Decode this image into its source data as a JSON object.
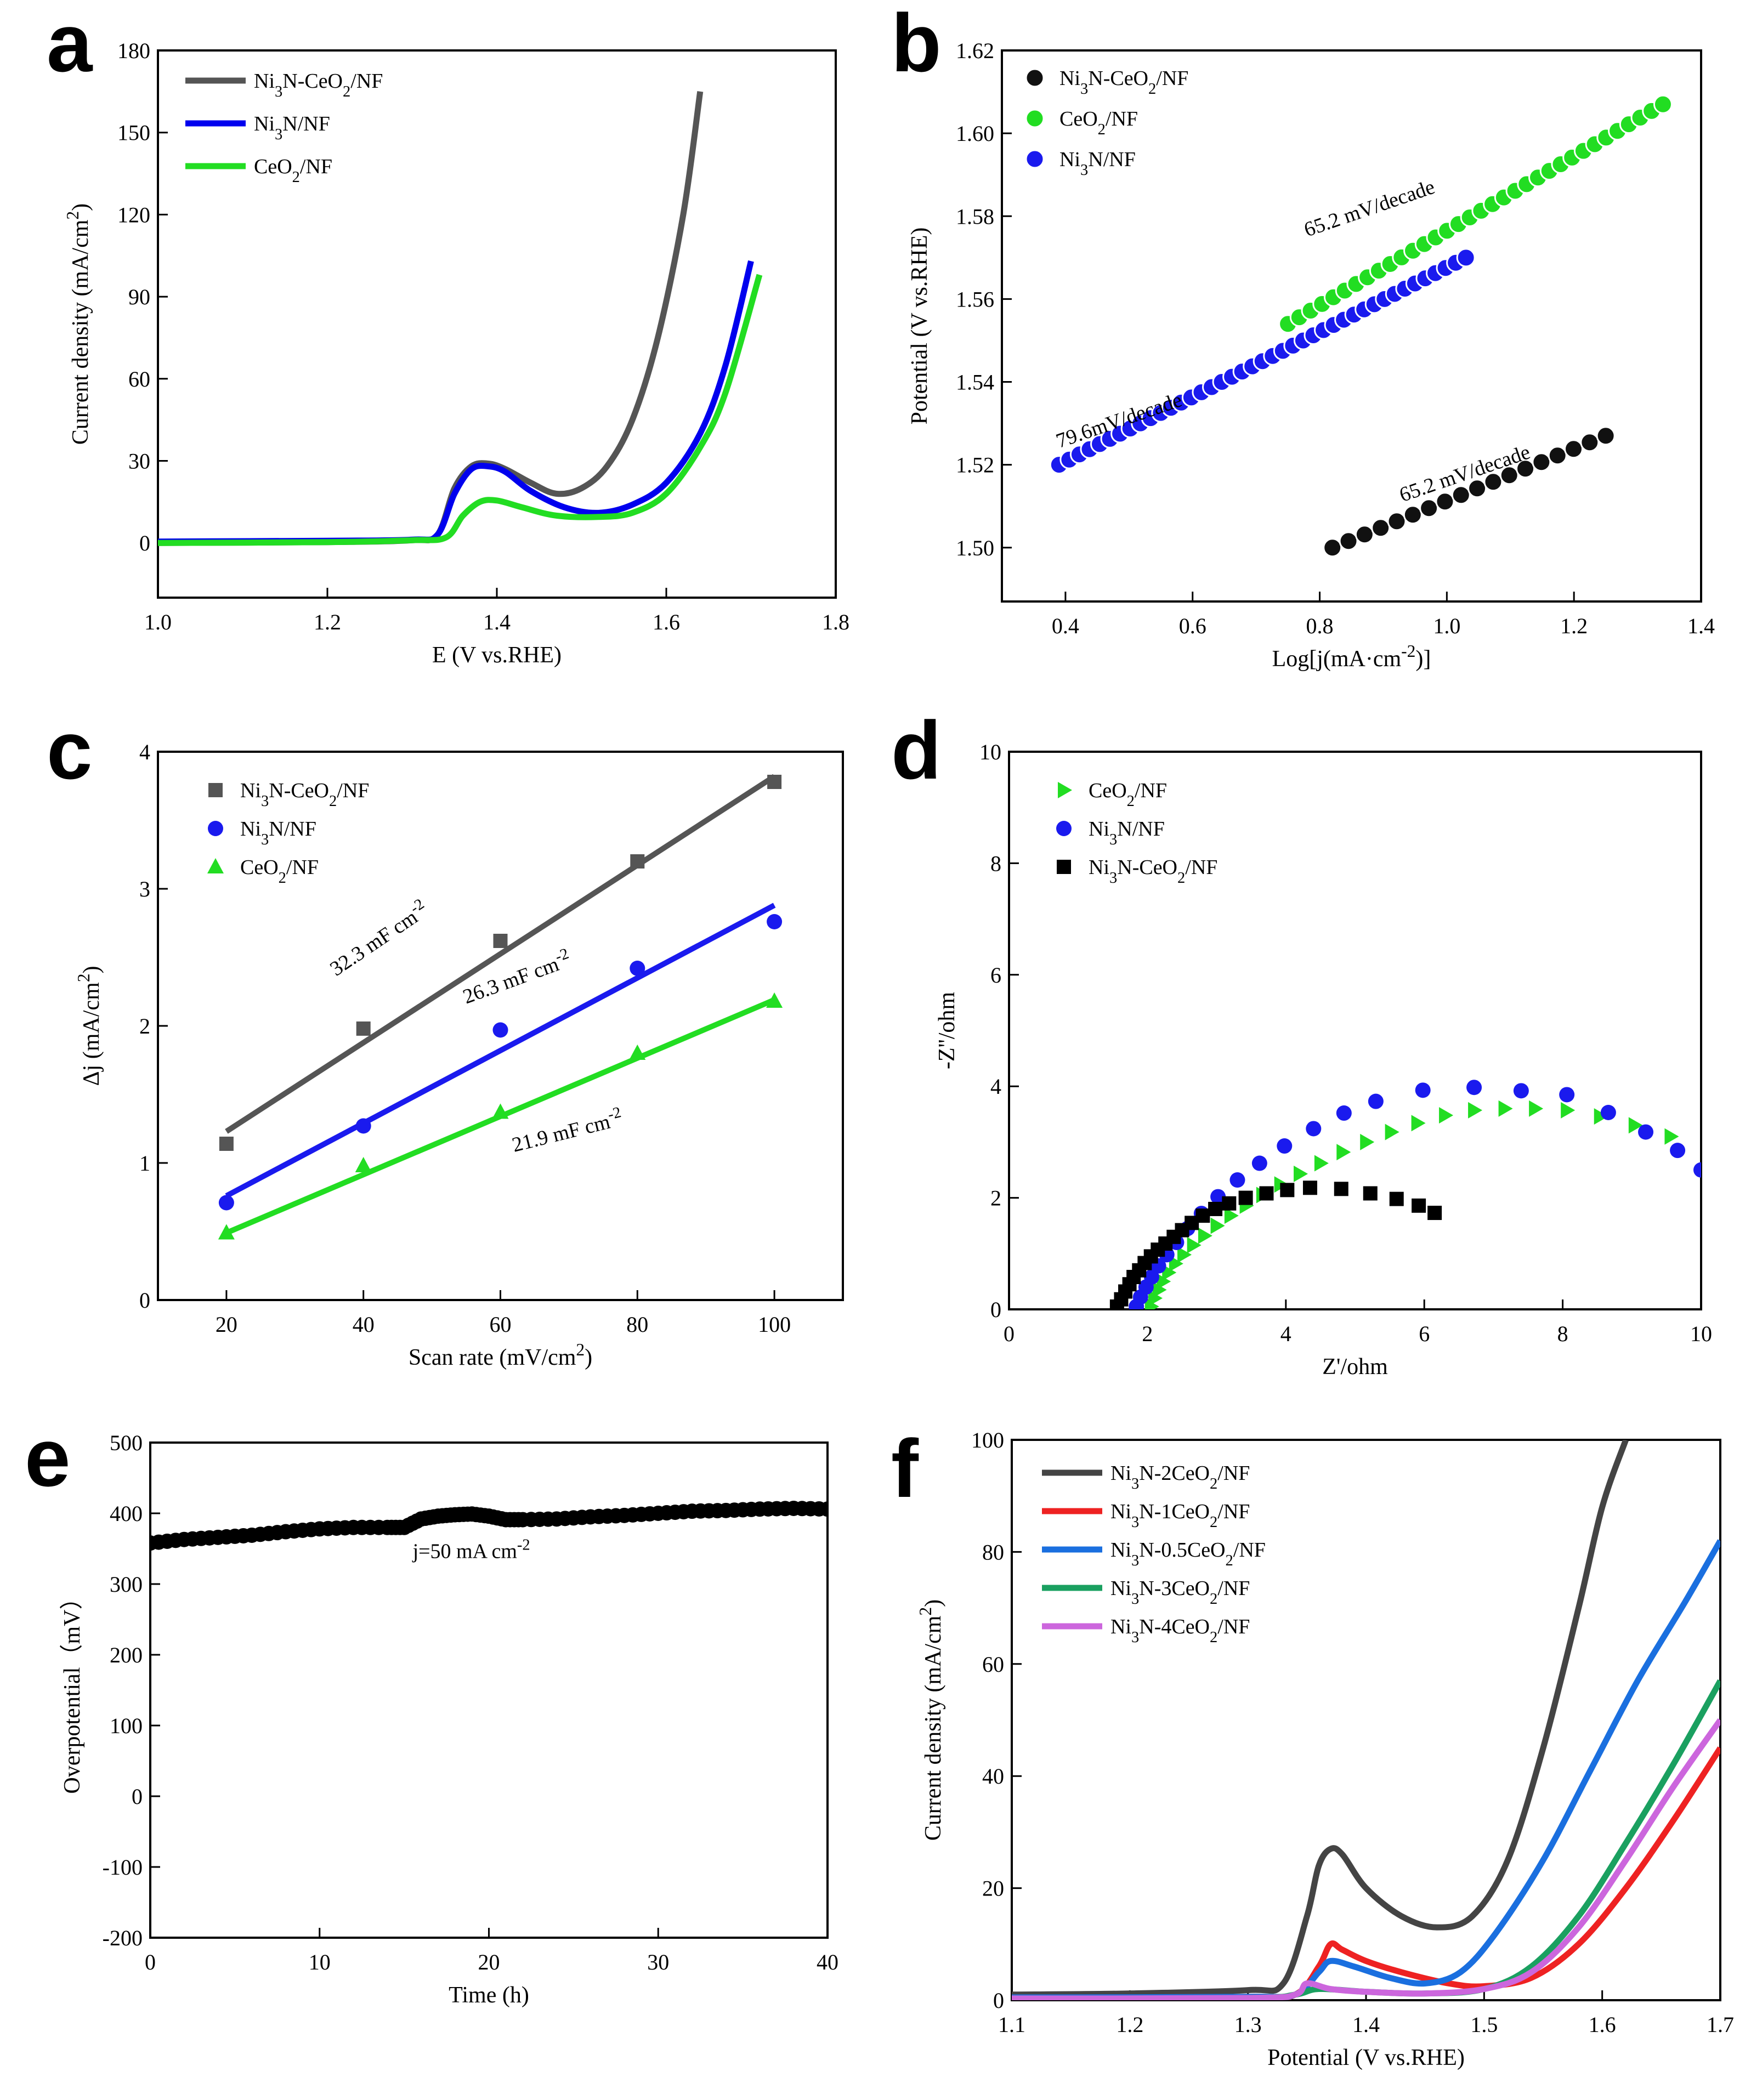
{
  "chart_data": [
    {
      "panel_label": "a",
      "type": "line",
      "xlabel": "E (V vs.RHE)",
      "ylabel": "Current density (mA/cm<sup>2</sup>)",
      "xlim": [
        1.0,
        1.8
      ],
      "ylim": [
        -20,
        180
      ],
      "xticks": [
        1.0,
        1.2,
        1.4,
        1.6,
        1.8
      ],
      "xtick_labels": [
        "1.0",
        "1.2",
        "1.4",
        "1.6",
        "1.8"
      ],
      "yticks": [
        0,
        30,
        60,
        90,
        120,
        150,
        180
      ],
      "ytick_labels": [
        "0",
        "30",
        "60",
        "90",
        "120",
        "150",
        "180"
      ],
      "legend_position": "top-left",
      "series": [
        {
          "name": "Ni<sub>3</sub>N-CeO<sub>2</sub>/NF",
          "color": "#555555",
          "marker": "line",
          "x": [
            1.0,
            1.2,
            1.3,
            1.33,
            1.35,
            1.37,
            1.39,
            1.41,
            1.44,
            1.47,
            1.5,
            1.53,
            1.56,
            1.59,
            1.62,
            1.64
          ],
          "y": [
            0,
            0.3,
            1,
            3,
            20,
            28,
            29,
            27,
            22,
            18,
            20,
            28,
            45,
            75,
            120,
            165
          ]
        },
        {
          "name": "Ni<sub>3</sub>N/NF",
          "color": "#0000ee",
          "marker": "line",
          "x": [
            1.0,
            1.2,
            1.3,
            1.33,
            1.35,
            1.37,
            1.39,
            1.41,
            1.44,
            1.48,
            1.52,
            1.56,
            1.6,
            1.64,
            1.67,
            1.7
          ],
          "y": [
            0.5,
            0.8,
            1.2,
            3,
            18,
            27,
            28,
            26,
            19,
            13,
            11,
            14,
            22,
            40,
            65,
            103
          ]
        },
        {
          "name": "CeO<sub>2</sub>/NF",
          "color": "#22dd22",
          "marker": "line",
          "x": [
            1.0,
            1.2,
            1.3,
            1.34,
            1.36,
            1.38,
            1.4,
            1.43,
            1.47,
            1.52,
            1.56,
            1.6,
            1.64,
            1.67,
            1.71
          ],
          "y": [
            0,
            0.3,
            1,
            2,
            10,
            15,
            15.5,
            13,
            10,
            9.5,
            11,
            18,
            35,
            55,
            98
          ]
        }
      ]
    },
    {
      "panel_label": "b",
      "type": "scatter",
      "xlabel": "Log[j(mA·cm<sup>-2</sup>)]",
      "ylabel": "Potential (V vs.RHE)",
      "xlim": [
        0.3,
        1.4
      ],
      "ylim": [
        1.487,
        1.62
      ],
      "xticks": [
        0.4,
        0.6,
        0.8,
        1.0,
        1.2,
        1.4
      ],
      "xtick_labels": [
        "0.4",
        "0.6",
        "0.8",
        "1.0",
        "1.2",
        "1.4"
      ],
      "yticks": [
        1.5,
        1.52,
        1.54,
        1.56,
        1.58,
        1.6,
        1.62
      ],
      "ytick_labels": [
        "1.50",
        "1.52",
        "1.54",
        "1.56",
        "1.58",
        "1.60",
        "1.62"
      ],
      "legend_position": "top-left",
      "series": [
        {
          "name": "Ni<sub>3</sub>N-CeO<sub>2</sub>/NF",
          "color": "#111111",
          "marker": "ball",
          "x_start": 0.82,
          "x_end": 1.25,
          "y_start": 1.5,
          "y_end": 1.527,
          "n": 18
        },
        {
          "name": "CeO<sub>2</sub>/NF",
          "color": "#22dd22",
          "marker": "ball",
          "x_start": 0.75,
          "x_end": 1.34,
          "y_start": 1.554,
          "y_end": 1.607,
          "n": 34
        },
        {
          "name": "Ni<sub>3</sub>N/NF",
          "color": "#1a1aee",
          "marker": "ball",
          "x_start": 0.39,
          "x_end": 1.03,
          "y_start": 1.52,
          "y_end": 1.57,
          "n": 41
        }
      ],
      "annotations": [
        {
          "text": "65.2 mV/decade",
          "x": 0.78,
          "y": 1.575,
          "angle": -19
        },
        {
          "text": "79.6mV/decade",
          "x": 0.39,
          "y": 1.524,
          "angle": -19
        },
        {
          "text": "65.2 mV/decade",
          "x": 0.93,
          "y": 1.511,
          "angle": -19
        }
      ]
    },
    {
      "panel_label": "c",
      "type": "scatter",
      "xlabel": "Scan rate (mV/cm<sup>2</sup>)",
      "ylabel": "Δj (mA/cm<sup>2</sup>)",
      "xlim": [
        10,
        110
      ],
      "ylim": [
        0,
        4
      ],
      "xticks": [
        20,
        40,
        60,
        80,
        100
      ],
      "xtick_labels": [
        "20",
        "40",
        "60",
        "80",
        "100"
      ],
      "yticks": [
        0,
        1,
        2,
        3,
        4
      ],
      "ytick_labels": [
        "0",
        "1",
        "2",
        "3",
        "4"
      ],
      "legend_position": "top-left",
      "series": [
        {
          "name": "Ni<sub>3</sub>N-CeO<sub>2</sub>/NF",
          "color": "#555555",
          "marker": "square",
          "x": [
            20,
            40,
            60,
            80,
            100
          ],
          "y": [
            1.14,
            1.98,
            2.62,
            3.2,
            3.78
          ],
          "fit": [
            1.23,
            3.82
          ]
        },
        {
          "name": "Ni<sub>3</sub>N/NF",
          "color": "#1a1aee",
          "marker": "circle",
          "x": [
            20,
            40,
            60,
            80,
            100
          ],
          "y": [
            0.71,
            1.27,
            1.97,
            2.42,
            2.76
          ],
          "fit": [
            0.76,
            2.88
          ]
        },
        {
          "name": "CeO<sub>2</sub>/NF",
          "color": "#22dd22",
          "marker": "triangle",
          "x": [
            20,
            40,
            60,
            80,
            100
          ],
          "y": [
            0.49,
            0.98,
            1.37,
            1.8,
            2.18
          ],
          "fit": [
            0.49,
            2.19
          ]
        }
      ],
      "annotations": [
        {
          "text": "32.3 mF cm<sup>-2</sup>",
          "x": 36,
          "y": 2.36,
          "angle": -34
        },
        {
          "text": "26.3 mF cm<sup>-2</sup>",
          "x": 55,
          "y": 2.16,
          "angle": -20
        },
        {
          "text": "21.9 mF cm<sup>-2</sup>",
          "x": 62,
          "y": 1.08,
          "angle": -14
        }
      ]
    },
    {
      "panel_label": "d",
      "type": "scatter",
      "xlabel": "Z'/ohm",
      "ylabel": "-Z''/ohm",
      "xlim": [
        0,
        10
      ],
      "ylim": [
        0,
        10
      ],
      "xticks": [
        0,
        2,
        4,
        6,
        8,
        10
      ],
      "xtick_labels": [
        "0",
        "2",
        "4",
        "6",
        "8",
        "10"
      ],
      "yticks": [
        0,
        2,
        4,
        6,
        8,
        10
      ],
      "ytick_labels": [
        "0",
        "2",
        "4",
        "6",
        "8",
        "10"
      ],
      "legend_position": "top-left",
      "series": [
        {
          "name": "CeO<sub>2</sub>/NF",
          "color": "#22dd22",
          "marker": "triangle-right",
          "x": [
            2.05,
            2.1,
            2.16,
            2.22,
            2.3,
            2.4,
            2.52,
            2.66,
            2.82,
            3.0,
            3.2,
            3.42,
            3.66,
            3.92,
            4.2,
            4.5,
            4.82,
            5.16,
            5.52,
            5.9,
            6.3,
            6.72,
            7.16,
            7.6,
            8.06,
            8.54,
            9.04,
            9.56
          ],
          "y": [
            0.05,
            0.2,
            0.35,
            0.5,
            0.66,
            0.82,
            0.98,
            1.15,
            1.32,
            1.5,
            1.68,
            1.86,
            2.05,
            2.24,
            2.43,
            2.62,
            2.82,
            3.0,
            3.18,
            3.34,
            3.48,
            3.57,
            3.6,
            3.6,
            3.57,
            3.46,
            3.3,
            3.1
          ]
        },
        {
          "name": "Ni<sub>3</sub>N/NF",
          "color": "#1a1aee",
          "marker": "circle",
          "x": [
            1.84,
            1.9,
            1.98,
            2.06,
            2.16,
            2.28,
            2.42,
            2.58,
            2.78,
            3.02,
            3.3,
            3.62,
            3.98,
            4.4,
            4.84,
            5.3,
            5.98,
            6.72,
            7.4,
            8.06,
            8.66,
            9.2,
            9.66,
            10.0
          ],
          "y": [
            0.05,
            0.22,
            0.4,
            0.58,
            0.78,
            0.98,
            1.2,
            1.45,
            1.72,
            2.02,
            2.32,
            2.62,
            2.93,
            3.24,
            3.52,
            3.73,
            3.93,
            3.98,
            3.92,
            3.85,
            3.53,
            3.18,
            2.85,
            2.5
          ]
        },
        {
          "name": "Ni<sub>3</sub>N-CeO<sub>2</sub>/NF",
          "color": "#000000",
          "marker": "square",
          "x": [
            1.56,
            1.62,
            1.68,
            1.74,
            1.8,
            1.88,
            1.96,
            2.05,
            2.15,
            2.26,
            2.38,
            2.5,
            2.64,
            2.8,
            2.98,
            3.18,
            3.42,
            3.72,
            4.02,
            4.35,
            4.8,
            5.22,
            5.6,
            5.92,
            6.15
          ],
          "y": [
            0.05,
            0.18,
            0.32,
            0.45,
            0.58,
            0.7,
            0.83,
            0.95,
            1.07,
            1.18,
            1.3,
            1.42,
            1.55,
            1.68,
            1.8,
            1.9,
            2.0,
            2.08,
            2.14,
            2.18,
            2.16,
            2.08,
            1.98,
            1.86,
            1.73
          ]
        }
      ]
    },
    {
      "panel_label": "e",
      "type": "scatter",
      "xlabel": "Time (h)",
      "ylabel": "Overpotential（mV）",
      "xlim": [
        0,
        40
      ],
      "ylim": [
        -200,
        500
      ],
      "xticks": [
        0,
        10,
        20,
        30,
        40
      ],
      "xtick_labels": [
        "0",
        "10",
        "20",
        "30",
        "40"
      ],
      "yticks": [
        -200,
        -100,
        0,
        100,
        200,
        300,
        400,
        500
      ],
      "ytick_labels": [
        "-200",
        "-100",
        "0",
        "100",
        "200",
        "300",
        "400",
        "500"
      ],
      "legend_position": "none",
      "series": [
        {
          "name": "overpotential",
          "color": "#000000",
          "marker": "ball",
          "x": [
            0,
            2,
            4,
            6,
            8,
            10,
            12,
            14,
            15,
            16,
            17,
            18,
            19,
            20,
            21,
            22,
            24,
            26,
            28,
            30,
            32,
            34,
            36,
            38,
            40
          ],
          "y": [
            358,
            363,
            366,
            369,
            374,
            378,
            380,
            380,
            380,
            392,
            396,
            398,
            399,
            396,
            391,
            391,
            392,
            395,
            397,
            400,
            403,
            404,
            406,
            407,
            406
          ]
        }
      ],
      "annotations": [
        {
          "text": "j=50 mA cm<sup>-2</sup>",
          "x": 15.5,
          "y": 337,
          "angle": 0
        }
      ]
    },
    {
      "panel_label": "f",
      "type": "line",
      "xlabel": "Potential (V vs.RHE)",
      "ylabel": "Current density (mA/cm<sup>2</sup>)",
      "xlim": [
        1.1,
        1.7
      ],
      "ylim": [
        0,
        100
      ],
      "xticks": [
        1.1,
        1.2,
        1.3,
        1.4,
        1.5,
        1.6,
        1.7
      ],
      "xtick_labels": [
        "1.1",
        "1.2",
        "1.3",
        "1.4",
        "1.5",
        "1.6",
        "1.7"
      ],
      "yticks": [
        0,
        20,
        40,
        60,
        80,
        100
      ],
      "ytick_labels": [
        "0",
        "20",
        "40",
        "60",
        "80",
        "100"
      ],
      "legend_position": "top-left",
      "series": [
        {
          "name": "Ni<sub>3</sub>N-2CeO<sub>2</sub>/NF",
          "color": "#444444",
          "marker": "line",
          "x": [
            1.1,
            1.2,
            1.3,
            1.33,
            1.35,
            1.36,
            1.37,
            1.38,
            1.4,
            1.43,
            1.46,
            1.49,
            1.52,
            1.55,
            1.58,
            1.6,
            1.62
          ],
          "y": [
            1,
            1.2,
            1.8,
            3,
            15,
            24,
            27,
            26,
            20,
            15,
            13,
            15,
            25,
            45,
            70,
            88,
            100
          ]
        },
        {
          "name": "Ni<sub>3</sub>N-1CeO<sub>2</sub>/NF",
          "color": "#ee2222",
          "marker": "line",
          "x": [
            1.1,
            1.3,
            1.34,
            1.36,
            1.37,
            1.38,
            1.4,
            1.43,
            1.47,
            1.5,
            1.54,
            1.58,
            1.62,
            1.66,
            1.7
          ],
          "y": [
            0.5,
            0.6,
            1,
            6,
            10,
            9,
            7,
            5,
            3,
            2.5,
            4,
            10,
            20,
            32,
            45
          ]
        },
        {
          "name": "Ni<sub>3</sub>N-0.5CeO<sub>2</sub>/NF",
          "color": "#1a6fdf",
          "marker": "line",
          "x": [
            1.1,
            1.3,
            1.34,
            1.36,
            1.37,
            1.39,
            1.42,
            1.45,
            1.48,
            1.51,
            1.55,
            1.59,
            1.63,
            1.67,
            1.7
          ],
          "y": [
            0.5,
            0.6,
            1,
            5,
            7,
            6,
            4,
            3,
            5,
            12,
            25,
            41,
            57,
            71,
            82
          ]
        },
        {
          "name": "Ni<sub>3</sub>N-3CeO<sub>2</sub>/NF",
          "color": "#1aa060",
          "marker": "line",
          "x": [
            1.1,
            1.3,
            1.34,
            1.36,
            1.4,
            1.45,
            1.5,
            1.54,
            1.58,
            1.62,
            1.66,
            1.7
          ],
          "y": [
            0.3,
            0.4,
            1,
            2,
            1.5,
            1.2,
            2,
            6,
            15,
            28,
            42,
            57
          ]
        },
        {
          "name": "Ni<sub>3</sub>N-4CeO<sub>2</sub>/NF",
          "color": "#cc66dd",
          "marker": "line",
          "x": [
            1.1,
            1.3,
            1.34,
            1.35,
            1.37,
            1.4,
            1.45,
            1.5,
            1.54,
            1.58,
            1.62,
            1.66,
            1.7
          ],
          "y": [
            0.3,
            0.4,
            1,
            3,
            2,
            1.5,
            1.2,
            2,
            5,
            13,
            25,
            38,
            50
          ]
        }
      ]
    }
  ]
}
